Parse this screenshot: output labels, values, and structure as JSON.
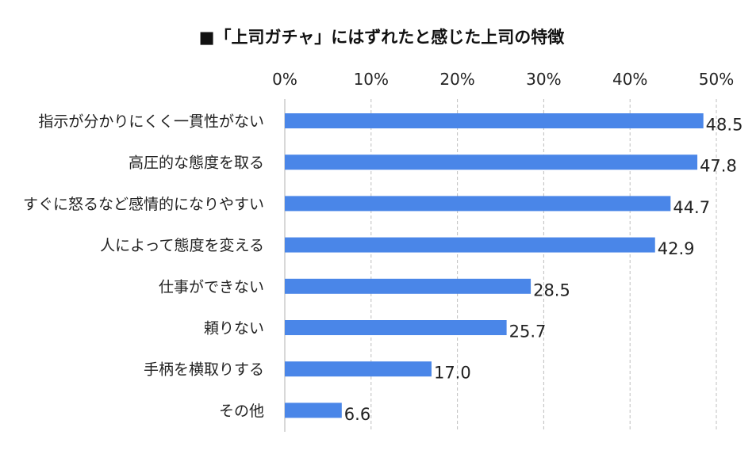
{
  "chart_data": {
    "type": "bar",
    "orientation": "horizontal",
    "title": "■「上司ガチャ」にはずれたと感じた上司の特徴",
    "xlim": [
      0,
      50
    ],
    "x_ticks": [
      0,
      10,
      20,
      30,
      40,
      50
    ],
    "x_tick_labels": [
      "0%",
      "10%",
      "20%",
      "30%",
      "40%",
      "50%"
    ],
    "x_axis_position": "top",
    "grid": true,
    "categories": [
      "指示が分かりにくく一貫性がない",
      "高圧的な態度を取る",
      "すぐに怒るなど感情的になりやすい",
      "人によって態度を変える",
      "仕事ができない",
      "頼りない",
      "手柄を横取りする",
      "その他"
    ],
    "values": [
      48.5,
      47.8,
      44.7,
      42.9,
      28.5,
      25.7,
      17.0,
      6.6
    ],
    "value_labels": [
      "48.5",
      "47.8",
      "44.7",
      "42.9",
      "28.5",
      "25.7",
      "17.0",
      "6.6"
    ],
    "bar_color": "#4a86e8"
  }
}
